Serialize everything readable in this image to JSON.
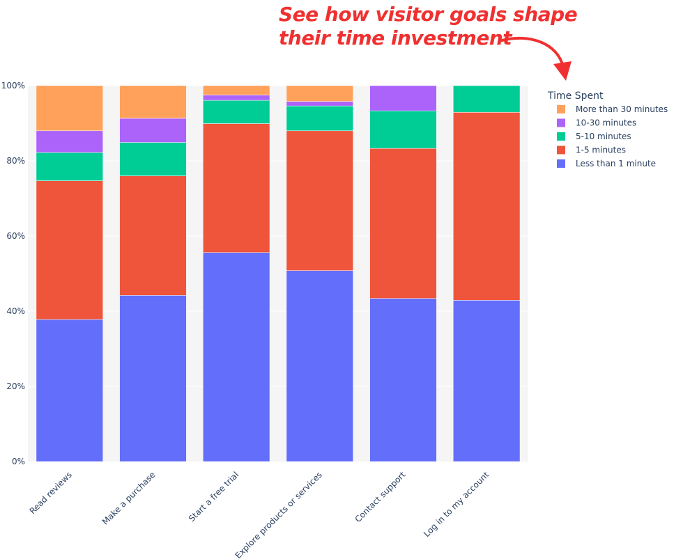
{
  "annotation": {
    "lines": [
      "See how visitor goals shape",
      "their time investment"
    ],
    "color": "#f03030"
  },
  "chart_data": {
    "type": "bar",
    "barmode": "stack",
    "categories": [
      "Read reviews",
      "Make a purchase",
      "Start a free trial",
      "Explore products or services",
      "Contact support",
      "Log in to my account"
    ],
    "series": [
      {
        "name": "Less than 1 minute",
        "color": "#636efa",
        "values": [
          37.8,
          44.2,
          55.6,
          50.8,
          43.4,
          42.9
        ]
      },
      {
        "name": "1-5 minutes",
        "color": "#ef553b",
        "values": [
          36.9,
          31.8,
          34.3,
          37.2,
          39.9,
          50.0
        ]
      },
      {
        "name": "5-10 minutes",
        "color": "#00cc96",
        "values": [
          7.5,
          8.9,
          6.2,
          6.6,
          10.0,
          7.1
        ]
      },
      {
        "name": "10-30 minutes",
        "color": "#ab63fa",
        "values": [
          5.8,
          6.4,
          1.4,
          1.2,
          6.7,
          0
        ]
      },
      {
        "name": "More than 30 minutes",
        "color": "#ffa15a",
        "values": [
          12.0,
          8.7,
          2.5,
          4.2,
          0,
          0
        ]
      }
    ],
    "ylim": [
      0,
      100
    ],
    "yticks": [
      "0%",
      "20%",
      "40%",
      "60%",
      "80%",
      "100%"
    ],
    "ytick_values": [
      0,
      20,
      40,
      60,
      80,
      100
    ],
    "legend": {
      "title": "Time Spent",
      "placement": "top-right",
      "order": [
        "More than 30 minutes",
        "10-30 minutes",
        "5-10 minutes",
        "1-5 minutes",
        "Less than 1 minute"
      ]
    },
    "grid": true,
    "background": "#f5f5f5"
  }
}
